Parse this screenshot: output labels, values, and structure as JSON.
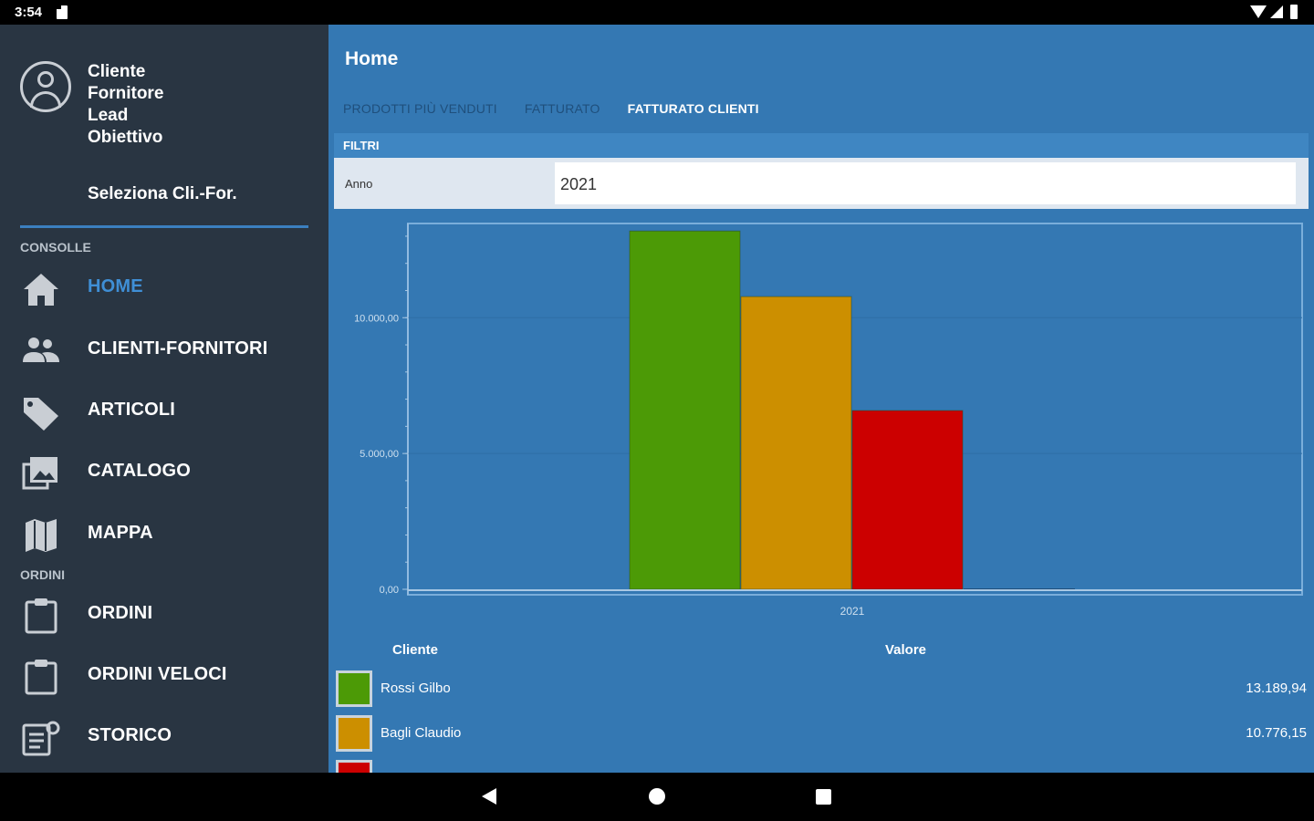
{
  "status_bar": {
    "time": "3:54"
  },
  "sidebar": {
    "profile_lines": [
      "Cliente",
      "Fornitore",
      "Lead",
      "Obiettivo"
    ],
    "select_label": "Seleziona Cli.-For.",
    "section_console": "CONSOLLE",
    "section_orders": "ORDINI",
    "items": [
      {
        "label": "HOME",
        "icon": "home-icon",
        "active": true
      },
      {
        "label": "CLIENTI-FORNITORI",
        "icon": "people-icon"
      },
      {
        "label": "ARTICOLI",
        "icon": "tag-icon"
      },
      {
        "label": "CATALOGO",
        "icon": "gallery-icon"
      },
      {
        "label": "MAPPA",
        "icon": "map-icon"
      },
      {
        "label": "ORDINI",
        "icon": "clipboard-icon"
      },
      {
        "label": "ORDINI VELOCI",
        "icon": "clipboard-icon"
      },
      {
        "label": "STORICO",
        "icon": "history-doc-icon"
      }
    ]
  },
  "main": {
    "title": "Home",
    "tabs": [
      {
        "label": "PRODOTTI PIÙ VENDUTI",
        "active": false
      },
      {
        "label": "FATTURATO",
        "active": false
      },
      {
        "label": "FATTURATO CLIENTI",
        "active": true
      }
    ],
    "filters_label": "FILTRI",
    "filter": {
      "label": "Anno",
      "value": "2021"
    },
    "table": {
      "col_client": "Cliente",
      "col_value": "Valore",
      "rows": [
        {
          "name": "Rossi Gilbo",
          "value": "13.189,94",
          "color": "#4c9a06"
        },
        {
          "name": "Bagli Claudio",
          "value": "10.776,15",
          "color": "#cc8f00"
        },
        {
          "name": "",
          "value": "",
          "color": "#cc0000"
        }
      ]
    }
  },
  "chart_data": {
    "type": "bar",
    "categories": [
      "2021"
    ],
    "series": [
      {
        "values": [
          13189.94
        ],
        "color": "#4c9a06"
      },
      {
        "values": [
          10776.15
        ],
        "color": "#cc8f00"
      },
      {
        "values": [
          6580
        ],
        "color": "#cc0000"
      }
    ],
    "ylim": [
      0,
      13300
    ],
    "yticks": [
      {
        "value": 0,
        "label": "0,00"
      },
      {
        "value": 5000,
        "label": "5.000,00"
      },
      {
        "value": 10000,
        "label": "10.000,00"
      }
    ],
    "grid": true,
    "title": "",
    "xlabel": "",
    "ylabel": ""
  },
  "colors": {
    "sidebar_bg": "#293542",
    "main_bg": "#3478b3",
    "accent": "#3f8fd6"
  }
}
